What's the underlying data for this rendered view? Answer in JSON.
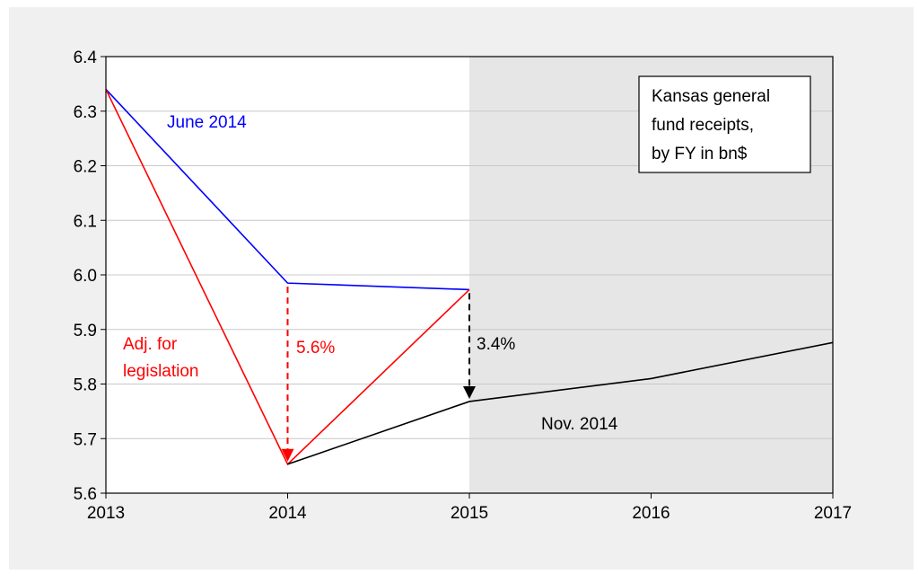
{
  "chart_data": {
    "type": "line",
    "x": [
      2013,
      2014,
      2015,
      2016,
      2017
    ],
    "xlim": [
      2013,
      2017
    ],
    "ylim": [
      5.6,
      6.4
    ],
    "y_ticks": [
      "5.6",
      "5.7",
      "5.8",
      "5.9",
      "6.0",
      "6.1",
      "6.2",
      "6.3",
      "6.4"
    ],
    "x_ticks": [
      "2013",
      "2014",
      "2015",
      "2016",
      "2017"
    ],
    "grid": true,
    "shaded_region": {
      "from": 2015,
      "to": 2017,
      "color": "#e6e6e6"
    },
    "series": [
      {
        "name": "June 2014",
        "color": "#0000ff",
        "x": [
          2013,
          2014,
          2015
        ],
        "y": [
          6.34,
          5.985,
          5.973
        ]
      },
      {
        "name": "Adj. for legislation",
        "color": "#ff0000",
        "x": [
          2013,
          2014,
          2015
        ],
        "y": [
          6.34,
          5.653,
          5.973
        ]
      },
      {
        "name": "Nov. 2014",
        "color": "#000000",
        "x": [
          2014,
          2015,
          2016,
          2017
        ],
        "y": [
          5.653,
          5.768,
          5.81,
          5.876
        ]
      }
    ],
    "annotations": {
      "legend_box": [
        "Kansas general",
        "fund receipts,",
        "by FY in bn$"
      ],
      "june_label": "June 2014",
      "adj_label": [
        "Adj. for",
        "legislation"
      ],
      "nov_label": "Nov. 2014",
      "pct_2014": "5.6%",
      "pct_2015": "3.4%"
    },
    "arrows": [
      {
        "x": 2014,
        "from": 5.985,
        "to": 5.653,
        "color": "#ff0000"
      },
      {
        "x": 2015,
        "from": 5.973,
        "to": 5.768,
        "color": "#000000"
      }
    ]
  }
}
